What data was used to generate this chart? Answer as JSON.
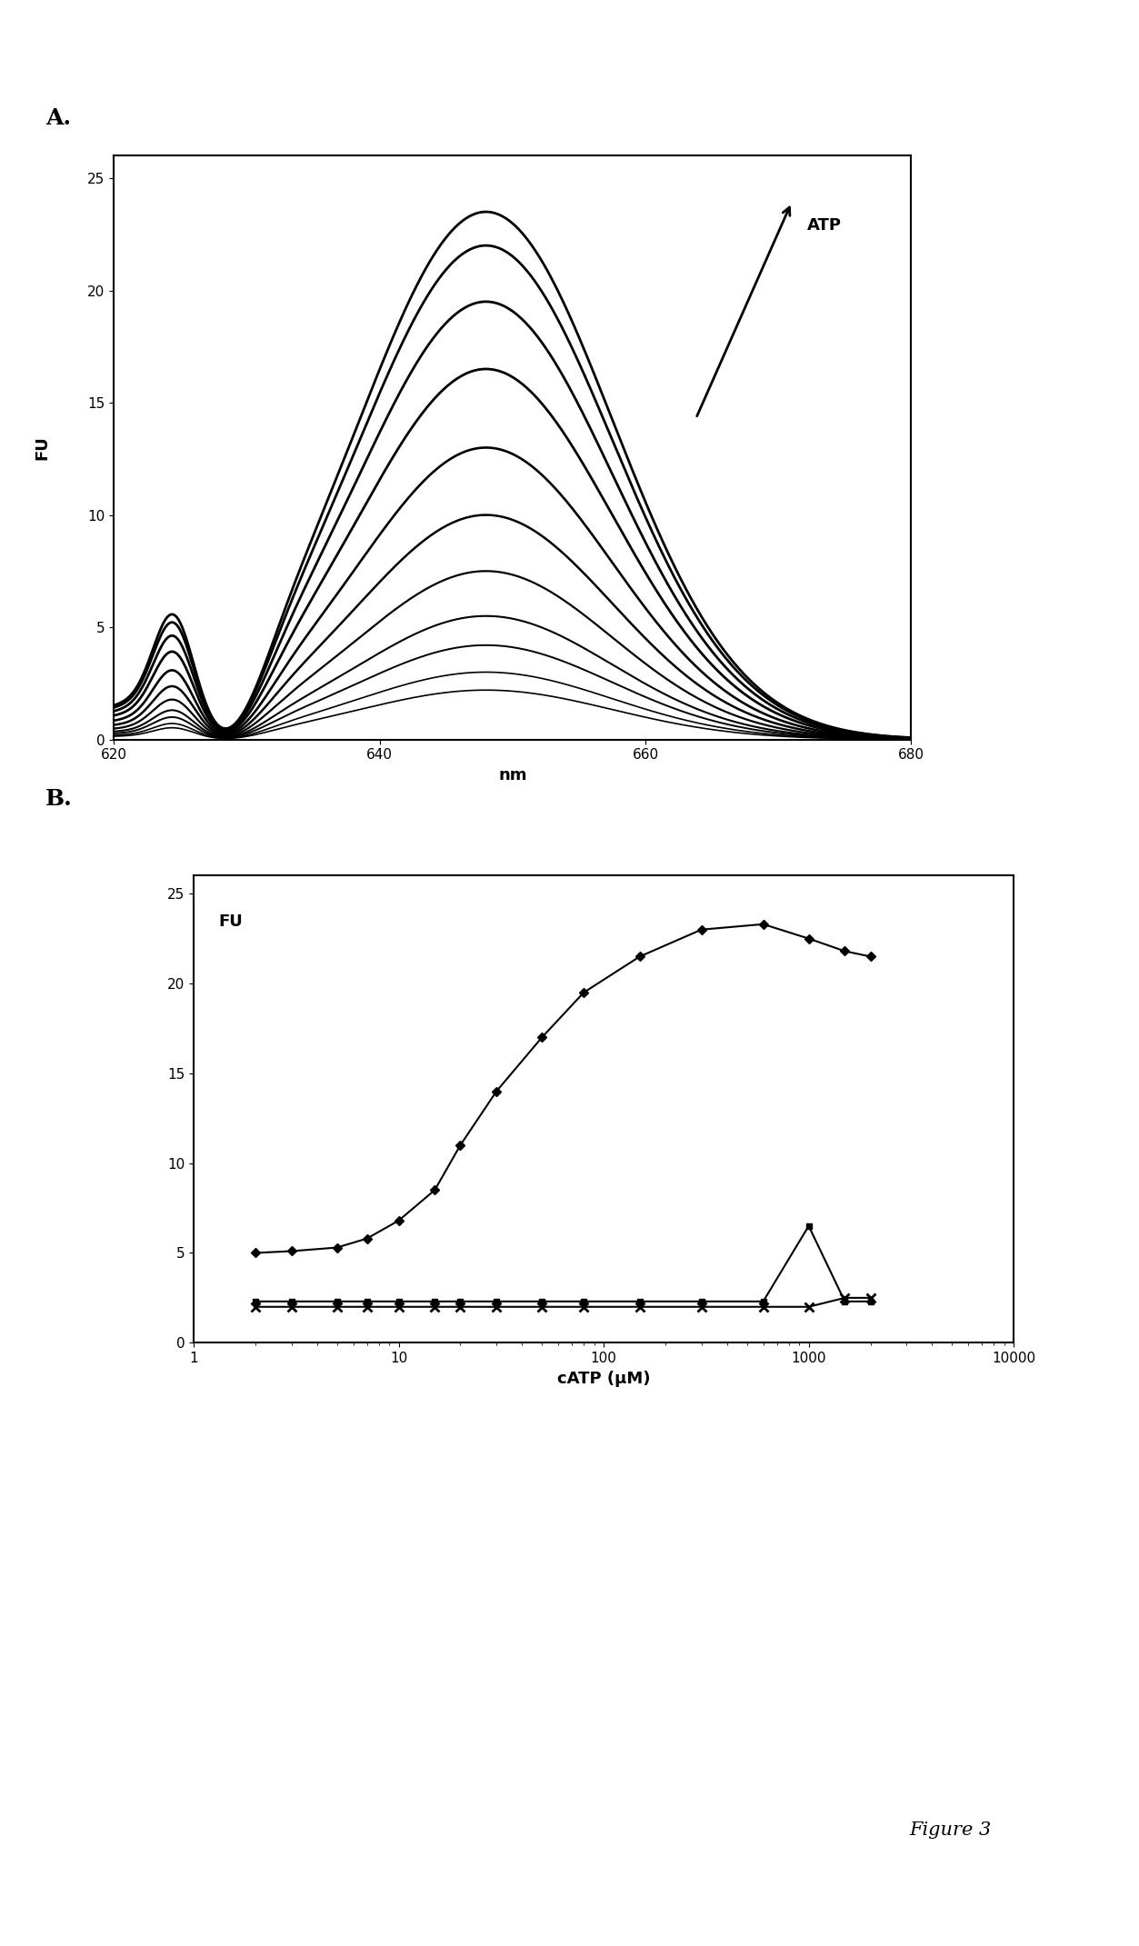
{
  "panel_a": {
    "xlim": [
      620,
      680
    ],
    "ylim": [
      0,
      26
    ],
    "yticks": [
      0,
      5,
      10,
      15,
      20,
      25
    ],
    "xticks": [
      620,
      640,
      660,
      680
    ],
    "xlabel": "nm",
    "ylabel": "FU",
    "atp_label": "ATP",
    "curves": [
      {
        "peak": 2.2,
        "lw": 1.2
      },
      {
        "peak": 3.0,
        "lw": 1.2
      },
      {
        "peak": 4.2,
        "lw": 1.4
      },
      {
        "peak": 5.5,
        "lw": 1.5
      },
      {
        "peak": 7.5,
        "lw": 1.6
      },
      {
        "peak": 10.0,
        "lw": 1.8
      },
      {
        "peak": 13.0,
        "lw": 1.9
      },
      {
        "peak": 16.5,
        "lw": 2.0
      },
      {
        "peak": 19.5,
        "lw": 2.0
      },
      {
        "peak": 22.0,
        "lw": 2.0
      },
      {
        "peak": 23.5,
        "lw": 2.0
      }
    ]
  },
  "panel_b": {
    "xlim_log": [
      1,
      10000
    ],
    "ylim": [
      0,
      26
    ],
    "yticks": [
      0,
      5,
      10,
      15,
      20,
      25
    ],
    "xlabel": "cATP (μM)",
    "ylabel": "FU",
    "series_main": {
      "x": [
        2,
        3,
        5,
        7,
        10,
        15,
        20,
        30,
        50,
        80,
        150,
        300,
        600,
        1000,
        1500,
        2000
      ],
      "y": [
        5.0,
        5.1,
        5.3,
        5.8,
        6.8,
        8.5,
        11.0,
        14.0,
        17.0,
        19.5,
        21.5,
        23.0,
        23.3,
        22.5,
        21.8,
        21.5
      ],
      "color": "#000000",
      "marker": "D",
      "ms": 5,
      "lw": 1.5
    },
    "series_square": {
      "x": [
        2,
        3,
        5,
        7,
        10,
        15,
        20,
        30,
        50,
        80,
        150,
        300,
        600,
        1000,
        1500,
        2000
      ],
      "y": [
        2.3,
        2.3,
        2.3,
        2.3,
        2.3,
        2.3,
        2.3,
        2.3,
        2.3,
        2.3,
        2.3,
        2.3,
        2.3,
        6.5,
        2.3,
        2.3
      ],
      "color": "#000000",
      "marker": "s",
      "ms": 5,
      "lw": 1.5
    },
    "series_x": {
      "x": [
        2,
        3,
        5,
        7,
        10,
        15,
        20,
        30,
        50,
        80,
        150,
        300,
        600,
        1000,
        1500,
        2000
      ],
      "y": [
        2.0,
        2.0,
        2.0,
        2.0,
        2.0,
        2.0,
        2.0,
        2.0,
        2.0,
        2.0,
        2.0,
        2.0,
        2.0,
        2.0,
        2.5,
        2.5
      ],
      "color": "#000000",
      "marker": "x",
      "ms": 7,
      "lw": 1.5
    }
  },
  "figure_label": "Figure 3",
  "label_a": "A.",
  "label_b": "B.",
  "fig_width": 12.53,
  "fig_height": 21.41
}
